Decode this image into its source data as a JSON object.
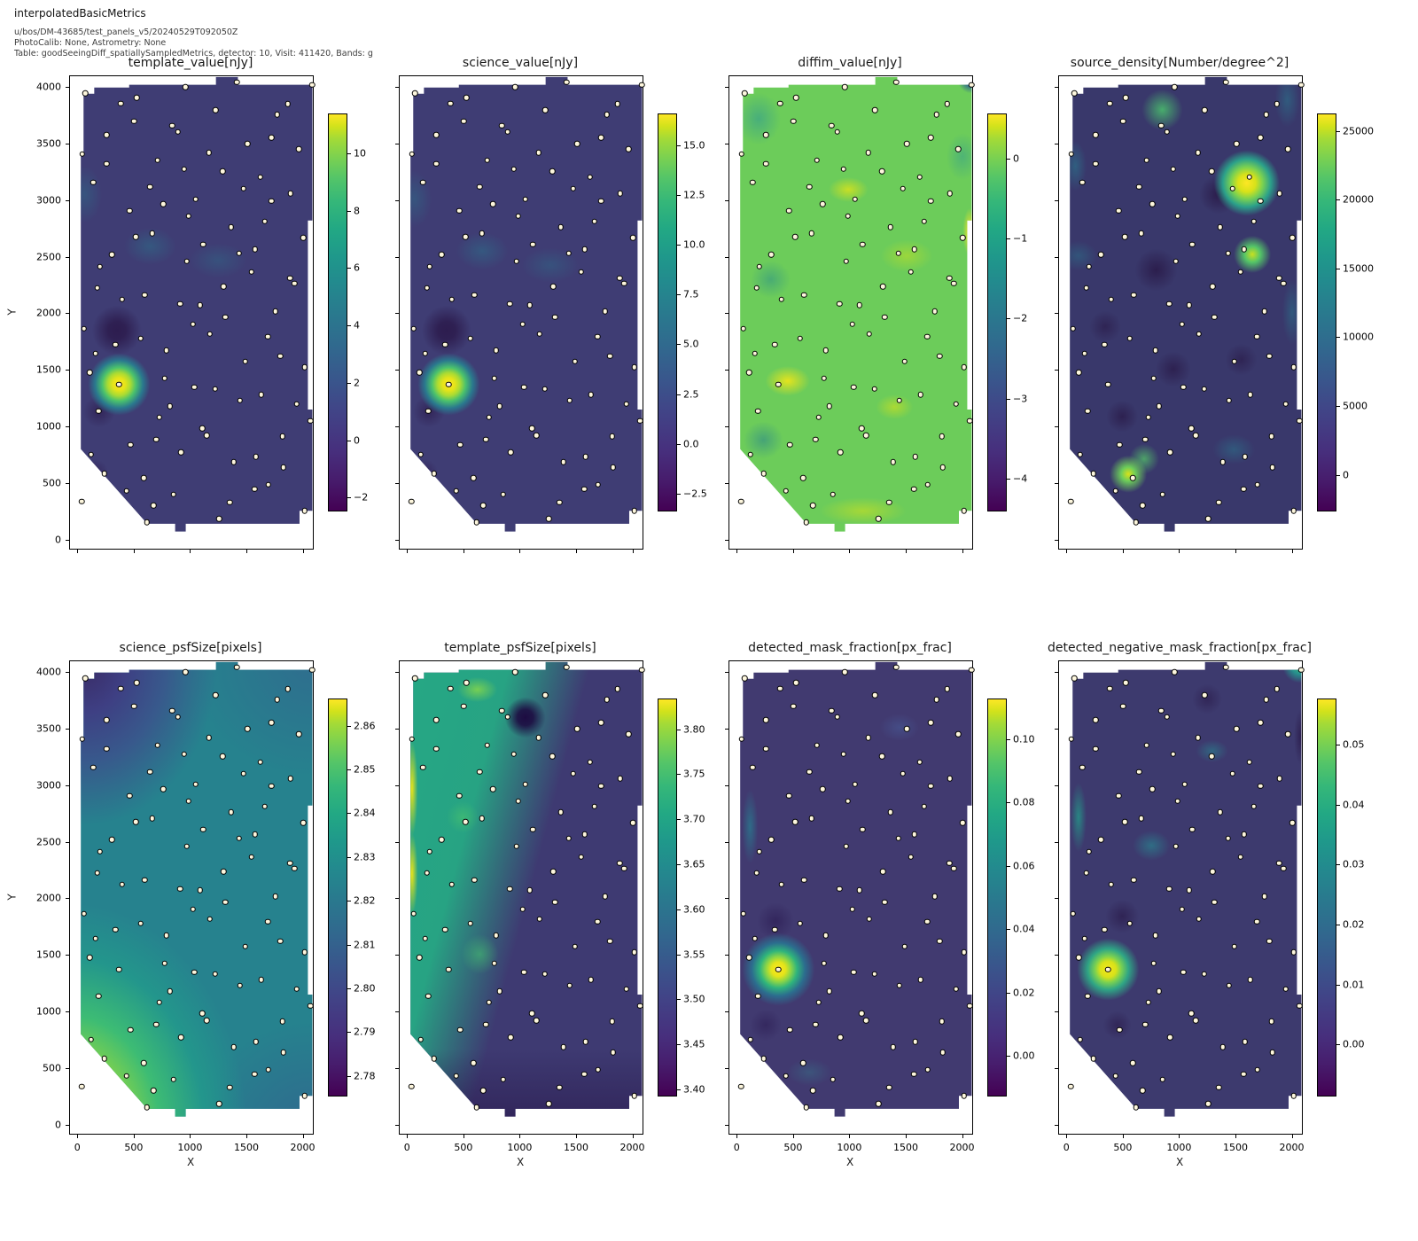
{
  "header": {
    "title": "interpolatedBasicMetrics",
    "meta_line1": "u/bos/DM-43685/test_panels_v5/20240529T092050Z",
    "meta_line2": "PhotoCalib: None, Astrometry: None",
    "meta_line3": "Table: goodSeeingDiff_spatiallySampledMetrics, detector: 10, Visit: 411420, Bands: g"
  },
  "colors": {
    "colormap": "viridis",
    "viridis_low": "#440154",
    "viridis_mid": "#21918c",
    "viridis_high": "#fde725",
    "marker_fill": "#fdf6dd",
    "marker_edge": "#000000",
    "axes_edge": "#000000"
  },
  "chart_data": {
    "type": "heatmap",
    "description": "2x4 grid of interpolated spatial metric maps (viridis colormap) over an irregular detector footprint, with identical spatially-sampled measurement points overplotted as small cream dots on every panel.",
    "x": {
      "label": "X",
      "lim": [
        -65,
        2090
      ],
      "ticks": [
        0,
        500,
        1000,
        1500,
        2000
      ],
      "tick_labels": [
        "0",
        "500",
        "1000",
        "1500",
        "2000"
      ]
    },
    "y": {
      "label": "Y",
      "lim": [
        -80,
        4095
      ],
      "ticks": [
        0,
        500,
        1000,
        1500,
        2000,
        2500,
        3000,
        3500,
        4000
      ],
      "tick_labels": [
        "0",
        "500",
        "1000",
        "1500",
        "2000",
        "2500",
        "3000",
        "3500",
        "4000"
      ]
    },
    "grid": false,
    "panels": [
      {
        "id": "template_value",
        "title": "template_value[nJy]",
        "colorbar": {
          "vmin": -2.45,
          "vmax": 11.35,
          "ticks": [
            10,
            8,
            6,
            4,
            2,
            0,
            -2
          ],
          "labels": [
            "10",
            "8",
            "6",
            "4",
            "2",
            "0",
            "−2"
          ]
        },
        "features": [
          "bright hotspot ~11 nJy at (x=371,y=1373)",
          "dark minimum ~-2 nJy at (x=350,y=1850)",
          "background mostly ~0.5-1.5 nJy (dark slate blue)"
        ]
      },
      {
        "id": "science_value",
        "title": "science_value[nJy]",
        "colorbar": {
          "vmin": -3.35,
          "vmax": 16.55,
          "ticks": [
            15.0,
            12.5,
            10.0,
            7.5,
            5.0,
            2.5,
            0.0,
            -2.5
          ],
          "labels": [
            "15.0",
            "12.5",
            "10.0",
            "7.5",
            "5.0",
            "2.5",
            "0.0",
            "−2.5"
          ]
        },
        "features": [
          "bright hotspot ~16 nJy at (x=371,y=1373)",
          "dark minimum ~-3 nJy at (x=350,y=1850)",
          "background mostly ~1-2 nJy (dark slate blue)"
        ]
      },
      {
        "id": "diffim_value",
        "title": "diffim_value[nJy]",
        "colorbar": {
          "vmin": -4.4,
          "vmax": 0.55,
          "ticks": [
            0,
            -1,
            -2,
            -3,
            -4
          ],
          "labels": [
            "0",
            "−1",
            "−2",
            "−3",
            "−4"
          ],
          "top_label": ""
        },
        "features": [
          "field mostly -0.7 to -0.2 nJy (green to yellow-green)",
          "bright patches ~0.3 at (450,1400), (1000,3100), right edge y~2800",
          "teal dips ~-1.5 top-left and left edge",
          "dark corner ~-4 at extreme top-right"
        ]
      },
      {
        "id": "source_density",
        "title": "source_density[Number/degree^2]",
        "colorbar": {
          "vmin": -2600,
          "vmax": 26200,
          "ticks": [
            25000,
            20000,
            15000,
            10000,
            5000,
            0
          ],
          "labels": [
            "25000",
            "20000",
            "15000",
            "10000",
            "5000",
            "0"
          ]
        },
        "features": [
          "peak ~26000 at (1600,3150)",
          "secondary bright ~18000 at (1650,2520) and (550,580)",
          "green patch at (850,3800)",
          "dark voids ~0 scattered through field",
          "background ~3000-8000"
        ]
      },
      {
        "id": "science_psfSize",
        "title": "science_psfSize[pixels]",
        "colorbar": {
          "vmin": 2.7755,
          "vmax": 2.866,
          "ticks": [
            2.86,
            2.85,
            2.84,
            2.83,
            2.82,
            2.81,
            2.8,
            2.79,
            2.78
          ],
          "labels": [
            "2.86",
            "2.85",
            "2.84",
            "2.83",
            "2.82",
            "2.81",
            "2.80",
            "2.79",
            "2.78"
          ]
        },
        "features": [
          "smooth diagonal gradient",
          "maximum ~2.866 px at bottom-left corner (yellow)",
          "minimum ~2.776 px at top-left corner (dark purple)",
          "middle of field ~2.82 px (teal)"
        ]
      },
      {
        "id": "template_psfSize",
        "title": "template_psfSize[pixels]",
        "colorbar": {
          "vmin": 3.393,
          "vmax": 3.833,
          "ticks": [
            3.8,
            3.75,
            3.7,
            3.65,
            3.6,
            3.55,
            3.5,
            3.45,
            3.4
          ],
          "labels": [
            "3.80",
            "3.75",
            "3.70",
            "3.65",
            "3.60",
            "3.55",
            "3.50",
            "3.45",
            "3.40"
          ]
        },
        "features": [
          "teal/green band ~3.6-3.7 over left third",
          "yellow stripe ~3.8 along left edge y=1900-3550",
          "dark spot ~3.4 at (1050,3600)",
          "right two-thirds ~3.45-3.5 (dark slate)",
          "bottom band darkest ~3.40"
        ]
      },
      {
        "id": "detected_mask_fraction",
        "title": "detected_mask_fraction[px_frac]",
        "colorbar": {
          "vmin": -0.0125,
          "vmax": 0.1125,
          "ticks": [
            0.1,
            0.08,
            0.06,
            0.04,
            0.02,
            0.0
          ],
          "labels": [
            "0.10",
            "0.08",
            "0.06",
            "0.04",
            "0.02",
            "0.00"
          ]
        },
        "features": [
          "bright peak ~0.11 at (371,1373)",
          "teal streak ~0.04 near left edge y~2400-3100",
          "faint light patch at (1450,3500)",
          "background ~0.005 (dark slate purple)"
        ]
      },
      {
        "id": "detected_negative_mask_fraction",
        "title": "detected_negative_mask_fraction[px_frac]",
        "colorbar": {
          "vmin": -0.0085,
          "vmax": 0.0575,
          "ticks": [
            0.05,
            0.04,
            0.03,
            0.02,
            0.01,
            0.0
          ],
          "labels": [
            "0.05",
            "0.04",
            "0.03",
            "0.02",
            "0.01",
            "0.00"
          ]
        },
        "features": [
          "bright peak ~0.055 at (371,1373)",
          "green corner ~0.03 at extreme top-right",
          "teal streak near left edge y~2500-3100 and blob at (750,2450)",
          "dark purple voids ~-0.005 scattered",
          "background ~0.003"
        ]
      }
    ],
    "sample_points": [
      [
        1417,
        4043
      ],
      [
        959,
        3999
      ],
      [
        2083,
        4017
      ],
      [
        71,
        3944
      ],
      [
        528,
        3904
      ],
      [
        384,
        3855
      ],
      [
        1866,
        3849
      ],
      [
        1228,
        3795
      ],
      [
        1772,
        3756
      ],
      [
        502,
        3698
      ],
      [
        841,
        3659
      ],
      [
        894,
        3604
      ],
      [
        259,
        3578
      ],
      [
        1722,
        3552
      ],
      [
        1511,
        3498
      ],
      [
        45,
        3406
      ],
      [
        1168,
        3421
      ],
      [
        1965,
        3451
      ],
      [
        711,
        3354
      ],
      [
        259,
        3320
      ],
      [
        946,
        3273
      ],
      [
        1291,
        3254
      ],
      [
        1625,
        3203
      ],
      [
        141,
        3156
      ],
      [
        645,
        3117
      ],
      [
        1474,
        3101
      ],
      [
        1892,
        3059
      ],
      [
        1051,
        3007
      ],
      [
        763,
        2965
      ],
      [
        1722,
        2991
      ],
      [
        463,
        2908
      ],
      [
        985,
        2861
      ],
      [
        1665,
        2811
      ],
      [
        1364,
        2762
      ],
      [
        666,
        2707
      ],
      [
        520,
        2675
      ],
      [
        2005,
        2668
      ],
      [
        1116,
        2607
      ],
      [
        306,
        2519
      ],
      [
        1435,
        2529
      ],
      [
        1578,
        2566
      ],
      [
        972,
        2459
      ],
      [
        201,
        2412
      ],
      [
        1547,
        2367
      ],
      [
        1887,
        2312
      ],
      [
        1926,
        2265
      ],
      [
        175,
        2226
      ],
      [
        1299,
        2237
      ],
      [
        397,
        2122
      ],
      [
        598,
        2163
      ],
      [
        912,
        2085
      ],
      [
        1090,
        2072
      ],
      [
        1756,
        2018
      ],
      [
        57,
        1866
      ],
      [
        1312,
        1965
      ],
      [
        1025,
        1903
      ],
      [
        562,
        1777
      ],
      [
        1176,
        1817
      ],
      [
        1691,
        1793
      ],
      [
        337,
        1725
      ],
      [
        162,
        1647
      ],
      [
        1801,
        1621
      ],
      [
        1490,
        1576
      ],
      [
        789,
        1673
      ],
      [
        110,
        1477
      ],
      [
        776,
        1427
      ],
      [
        2017,
        1524
      ],
      [
        1037,
        1349
      ],
      [
        1221,
        1331
      ],
      [
        1633,
        1282
      ],
      [
        1443,
        1229
      ],
      [
        1947,
        1198
      ],
      [
        188,
        1135
      ],
      [
        729,
        1083
      ],
      [
        821,
        1180
      ],
      [
        2070,
        1049
      ],
      [
        371,
        1373
      ],
      [
        1108,
        984
      ],
      [
        1150,
        919
      ],
      [
        698,
        885
      ],
      [
        1821,
        911
      ],
      [
        470,
        838
      ],
      [
        920,
        773
      ],
      [
        1586,
        734
      ],
      [
        123,
        754
      ],
      [
        1390,
        684
      ],
      [
        1827,
        637
      ],
      [
        241,
        585
      ],
      [
        588,
        543
      ],
      [
        1696,
        486
      ],
      [
        1573,
        446
      ],
      [
        437,
        431
      ],
      [
        854,
        399
      ],
      [
        40,
        337
      ],
      [
        677,
        303
      ],
      [
        1351,
        329
      ],
      [
        2017,
        253
      ],
      [
        1260,
        186
      ],
      [
        619,
        154
      ]
    ],
    "footprint_polygon_pct": [
      [
        5.57,
        3.71
      ],
      [
        9.98,
        3.71
      ],
      [
        9.98,
        2.4
      ],
      [
        24.36,
        2.4
      ],
      [
        24.36,
        1.8
      ],
      [
        60.09,
        1.8
      ],
      [
        60.09,
        0.17
      ],
      [
        69.14,
        0.17
      ],
      [
        69.14,
        1.8
      ],
      [
        99.81,
        1.8
      ],
      [
        99.81,
        30.54
      ],
      [
        97.96,
        30.54
      ],
      [
        97.96,
        70.54
      ],
      [
        99.81,
        70.54
      ],
      [
        99.81,
        91.98
      ],
      [
        94.52,
        91.98
      ],
      [
        94.52,
        94.73
      ],
      [
        47.66,
        94.73
      ],
      [
        47.66,
        96.36
      ],
      [
        43.29,
        96.36
      ],
      [
        43.29,
        94.73
      ],
      [
        31.79,
        94.73
      ],
      [
        4.45,
        78.92
      ],
      [
        4.45,
        16.65
      ],
      [
        5.57,
        16.65
      ]
    ]
  }
}
